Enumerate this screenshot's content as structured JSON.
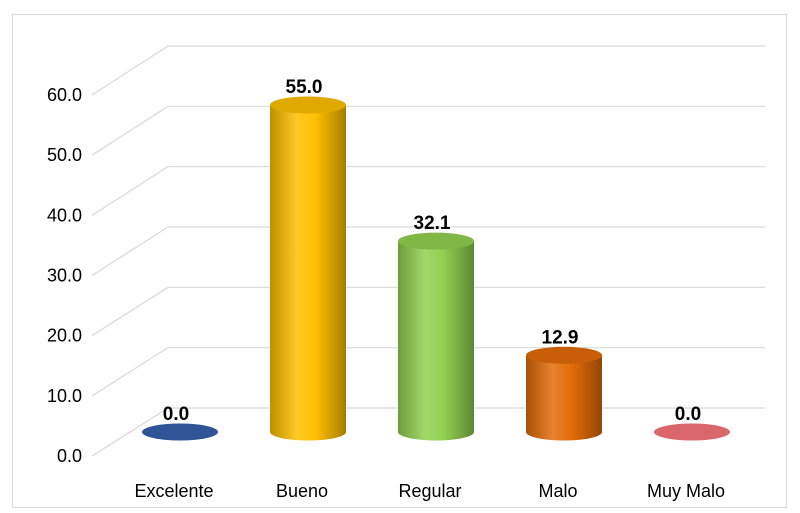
{
  "chart_data": {
    "type": "bar",
    "categories": [
      "Excelente",
      "Bueno",
      "Regular",
      "Malo",
      "Muy Malo"
    ],
    "values": [
      0.0,
      55.0,
      32.1,
      12.9,
      0.0
    ],
    "value_labels": [
      "0.0",
      "55.0",
      "32.1",
      "12.9",
      "0.0"
    ],
    "ylim": [
      0,
      60
    ],
    "yticks": [
      "0.0",
      "10.0",
      "20.0",
      "30.0",
      "40.0",
      "50.0",
      "60.0"
    ],
    "grid": true,
    "legend": "none",
    "style": "3d-cylinder",
    "colors": {
      "bar_colors": [
        "#2f5597",
        "#ffc000",
        "#92d050",
        "#e36c09",
        "#d9666b"
      ],
      "gridline": "#d9d9d9"
    }
  }
}
